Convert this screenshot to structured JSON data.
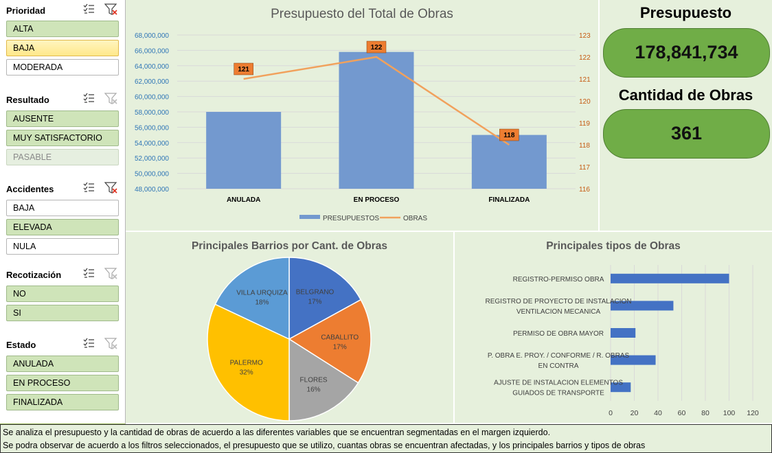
{
  "slicers": [
    {
      "title": "Prioridad",
      "filter_active": true,
      "items": [
        {
          "label": "ALTA",
          "state": "sel"
        },
        {
          "label": "BAJA",
          "state": "hov"
        },
        {
          "label": "MODERADA",
          "state": "none"
        }
      ]
    },
    {
      "title": "Resultado",
      "filter_active": false,
      "items": [
        {
          "label": "AUSENTE",
          "state": "sel"
        },
        {
          "label": "MUY SATISFACTORIO",
          "state": "sel"
        },
        {
          "label": "PASABLE",
          "state": "dis"
        }
      ]
    },
    {
      "title": "Accidentes",
      "filter_active": true,
      "items": [
        {
          "label": "BAJA",
          "state": "none"
        },
        {
          "label": "ELEVADA",
          "state": "sel"
        },
        {
          "label": "NULA",
          "state": "none"
        }
      ]
    },
    {
      "title": "Recotización",
      "filter_active": false,
      "items": [
        {
          "label": "NO",
          "state": "sel"
        },
        {
          "label": "SI",
          "state": "sel"
        }
      ]
    },
    {
      "title": "Estado",
      "filter_active": false,
      "items": [
        {
          "label": "ANULADA",
          "state": "sel"
        },
        {
          "label": "EN PROCESO",
          "state": "sel"
        },
        {
          "label": "FINALIZADA",
          "state": "sel"
        }
      ]
    }
  ],
  "kpis": {
    "budget_label": "Presupuesto",
    "budget_value": "178,841,734",
    "count_label": "Cantidad de Obras",
    "count_value": "361"
  },
  "colors": {
    "panel": "#e6f0dc",
    "kpi": "#70ad47",
    "bar": "#7399cf",
    "line": "#f1a15c",
    "label_box": "#ed7d31",
    "hbar": "#4472c4"
  },
  "footer": {
    "line1": "Se analiza el presupuesto y la cantidad de obras de acuerdo a las diferentes variables que se encuentran segmentadas en el margen izquierdo.",
    "line2": "Se podra observar de acuerdo a los filtros seleccionados, el presupuesto que se utilizo, cuantas obras se encuentran afectadas, y los principales barrios y tipos de obras"
  },
  "chart_data": [
    {
      "type": "bar",
      "title": "Presupuesto del Total de Obras",
      "categories": [
        "ANULADA",
        "EN PROCESO",
        "FINALIZADA"
      ],
      "series": [
        {
          "name": "PRESUPUESTOS",
          "values": [
            58000000,
            65800000,
            55000000
          ],
          "axis": "left"
        },
        {
          "name": "OBRAS",
          "values": [
            121,
            122,
            118
          ],
          "axis": "right",
          "kind": "line",
          "data_labels": [
            "121",
            "122",
            "118"
          ]
        }
      ],
      "ylim": [
        48000000,
        68000000
      ],
      "yticks": [
        "48,000,000",
        "50,000,000",
        "52,000,000",
        "54,000,000",
        "56,000,000",
        "58,000,000",
        "60,000,000",
        "62,000,000",
        "64,000,000",
        "66,000,000",
        "68,000,000"
      ],
      "y2lim": [
        116,
        123
      ],
      "y2ticks": [
        "116",
        "117",
        "118",
        "119",
        "120",
        "121",
        "122",
        "123"
      ],
      "legend": "bottom"
    },
    {
      "type": "pie",
      "title": "Principales Barrios por Cant. de Obras",
      "slices": [
        {
          "label": "BELGRANO",
          "pct": "17%",
          "value": 17,
          "color": "#4472c4"
        },
        {
          "label": "CABALLITO",
          "pct": "17%",
          "value": 17,
          "color": "#ed7d31"
        },
        {
          "label": "FLORES",
          "pct": "16%",
          "value": 16,
          "color": "#a5a5a5"
        },
        {
          "label": "PALERMO",
          "pct": "32%",
          "value": 32,
          "color": "#ffc000"
        },
        {
          "label": "VILLA URQUIZA",
          "pct": "18%",
          "value": 18,
          "color": "#5b9bd5"
        }
      ]
    },
    {
      "type": "bar",
      "orientation": "horizontal",
      "title": "Principales tipos de Obras",
      "categories": [
        [
          "REGISTRO-PERMISO OBRA"
        ],
        [
          "REGISTRO DE PROYECTO DE INSTALACION",
          "VENTILACION MECANICA"
        ],
        [
          "PERMISO DE OBRA MAYOR"
        ],
        [
          "P. OBRA E. PROY. / CONFORME / R. OBRAS",
          "EN CONTRA"
        ],
        [
          "AJUSTE DE INSTALACION ELEMENTOS",
          "GUIADOS DE TRANSPORTE"
        ]
      ],
      "values": [
        100,
        53,
        21,
        38,
        17
      ],
      "xlim": [
        0,
        120
      ],
      "xticks": [
        "0",
        "20",
        "40",
        "60",
        "80",
        "100",
        "120"
      ],
      "grid": true
    }
  ]
}
